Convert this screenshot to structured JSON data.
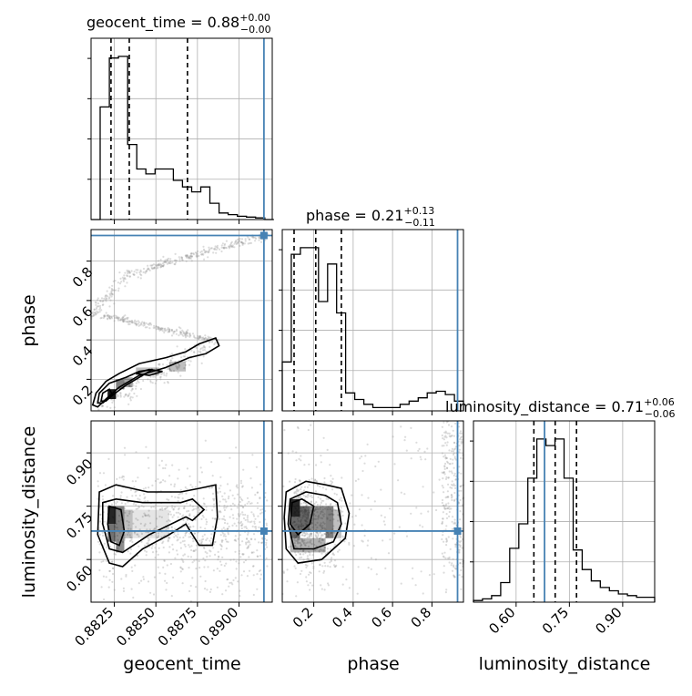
{
  "colors": {
    "truth": "#4682b4",
    "hist": "#000000",
    "grid": "#b0b0b0",
    "scatter": "#9a9a9a"
  },
  "chart_data": {
    "type": "corner",
    "parameters": [
      "geocent_time",
      "phase",
      "luminosity_distance"
    ],
    "truths": {
      "geocent_time": 0.8915,
      "phase": 0.93,
      "luminosity_distance": 0.68
    },
    "ranges": {
      "geocent_time": [
        0.8811,
        0.892
      ],
      "phase": [
        0.04,
        0.96
      ],
      "luminosity_distance": [
        0.48,
        0.99
      ]
    },
    "grid": true,
    "titles": [
      {
        "param": "geocent_time",
        "text": "geocent_time = 0.88",
        "sup": "+0.00",
        "sub": "−0.00"
      },
      {
        "param": "phase",
        "text": "phase = 0.21",
        "sup": "+0.13",
        "sub": "−0.11"
      },
      {
        "param": "luminosity_distance",
        "text": "luminosity_distance = 0.71",
        "sup": "+0.06",
        "sub": "−0.06"
      }
    ],
    "axis_labels": {
      "geocent_time": "geocent_time",
      "phase": "phase",
      "luminosity_distance": "luminosity_distance"
    },
    "ticks": {
      "geocent_time": {
        "values": [
          0.8825,
          0.885,
          0.8875,
          0.89
        ],
        "labels": [
          "0.8825",
          "0.8850",
          "0.8875",
          "0.8900"
        ]
      },
      "phase": {
        "values": [
          0.2,
          0.4,
          0.6,
          0.8
        ],
        "labels": [
          "0.2",
          "0.4",
          "0.6",
          "0.8"
        ]
      },
      "luminosity_distance": {
        "values": [
          0.6,
          0.75,
          0.9
        ],
        "labels": [
          "0.60",
          "0.75",
          "0.90"
        ]
      }
    },
    "histograms": {
      "geocent_time": {
        "edges": [
          0.8811,
          0.88165,
          0.8822,
          0.88275,
          0.8833,
          0.88385,
          0.8844,
          0.88495,
          0.8855,
          0.88605,
          0.8866,
          0.88715,
          0.8877,
          0.88825,
          0.8888,
          0.88935,
          0.8899,
          0.89045,
          0.891,
          0.89155,
          0.8921
        ],
        "counts": [
          0.0,
          0.69,
          0.99,
          1.0,
          0.46,
          0.31,
          0.28,
          0.31,
          0.31,
          0.24,
          0.2,
          0.17,
          0.2,
          0.1,
          0.04,
          0.03,
          0.02,
          0.015,
          0.01,
          0.0
        ],
        "quantiles": [
          0.8823,
          0.8834,
          0.8869
        ]
      },
      "phase": {
        "edges": [
          0.04,
          0.086,
          0.132,
          0.178,
          0.224,
          0.27,
          0.316,
          0.362,
          0.408,
          0.454,
          0.5,
          0.546,
          0.592,
          0.638,
          0.684,
          0.73,
          0.776,
          0.822,
          0.868,
          0.914,
          0.96
        ],
        "counts": [
          0.3,
          0.96,
          1.0,
          1.0,
          0.67,
          0.9,
          0.6,
          0.11,
          0.07,
          0.04,
          0.02,
          0.02,
          0.02,
          0.04,
          0.06,
          0.08,
          0.11,
          0.12,
          0.1,
          0.06
        ],
        "quantiles": [
          0.1,
          0.21,
          0.34
        ]
      },
      "luminosity_distance": {
        "edges": [
          0.48,
          0.5055,
          0.531,
          0.5565,
          0.582,
          0.6075,
          0.633,
          0.6585,
          0.684,
          0.7095,
          0.735,
          0.7605,
          0.786,
          0.8115,
          0.837,
          0.8625,
          0.888,
          0.9135,
          0.939,
          0.9645,
          0.99
        ],
        "counts": [
          0.01,
          0.02,
          0.04,
          0.12,
          0.33,
          0.48,
          0.76,
          1.0,
          0.96,
          1.0,
          0.76,
          0.32,
          0.2,
          0.13,
          0.09,
          0.07,
          0.05,
          0.04,
          0.03,
          0.03
        ],
        "quantiles": [
          0.65,
          0.71,
          0.77
        ]
      }
    }
  }
}
